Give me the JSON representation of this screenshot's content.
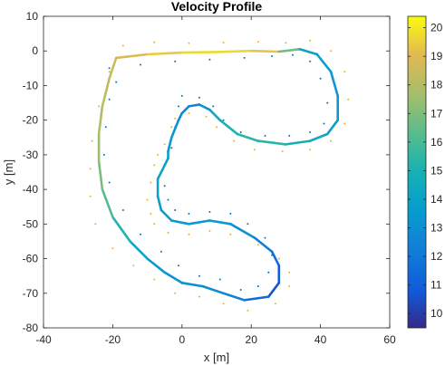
{
  "chart_data": {
    "type": "line",
    "title": "Velocity Profile",
    "xlabel": "x [m]",
    "ylabel": "y [m]",
    "xlim": [
      -40,
      60
    ],
    "ylim": [
      -80,
      10
    ],
    "xticks": [
      -40,
      -20,
      0,
      20,
      40,
      60
    ],
    "yticks": [
      10,
      0,
      -10,
      -20,
      -30,
      -40,
      -50,
      -60,
      -70,
      -80
    ],
    "grid": false,
    "colorbar": {
      "range": [
        9.5,
        20.4
      ],
      "ticks": [
        10,
        11,
        12,
        13,
        14,
        15,
        16,
        17,
        18,
        19,
        20
      ],
      "colormap": "parula"
    },
    "path": {
      "x": [
        -19,
        -10,
        0,
        10,
        20,
        28,
        34,
        39,
        43,
        45,
        45,
        42,
        37,
        30,
        22,
        16,
        11,
        8,
        5,
        2,
        0,
        -1,
        -3,
        -4,
        -4,
        -5,
        -7,
        -7,
        -6,
        -3,
        2,
        8,
        14,
        21,
        26,
        28,
        28,
        25,
        18,
        12,
        6,
        0,
        -5,
        -10,
        -15,
        -20,
        -23,
        -24,
        -24,
        -23,
        -21
      ],
      "y": [
        -2,
        -1,
        -0.5,
        -0.3,
        0,
        -0.2,
        0.5,
        -1,
        -6,
        -13,
        -20,
        -24,
        -26,
        -27,
        -26,
        -24,
        -20,
        -17,
        -15.5,
        -16,
        -18,
        -20,
        -25,
        -29,
        -31,
        -33,
        -37,
        -42,
        -46,
        -49,
        -50,
        -49,
        -50,
        -54,
        -58,
        -62,
        -67,
        -71,
        -72,
        -70,
        -68,
        -67,
        -64,
        -60,
        -55,
        -48,
        -40,
        -32,
        -24,
        -16,
        -8
      ],
      "v": [
        18.6,
        19.2,
        19.6,
        19.8,
        19.6,
        19.0,
        14.2,
        13.8,
        13.5,
        13.3,
        13.5,
        14.0,
        14.5,
        15.2,
        15.5,
        15.3,
        14.8,
        14.0,
        12.6,
        12.5,
        12.7,
        13.0,
        13.3,
        13.6,
        13.8,
        13.9,
        14.0,
        13.9,
        13.8,
        13.6,
        13.5,
        13.6,
        13.4,
        12.6,
        12.0,
        11.2,
        10.5,
        10.8,
        12.2,
        12.8,
        13.0,
        13.2,
        13.4,
        13.8,
        14.5,
        15.8,
        16.5,
        17.3,
        17.8,
        18.1,
        18.3
      ]
    },
    "outer_boundary": {
      "color": "#EDB120",
      "x": [
        -17,
        -8,
        2,
        12,
        22,
        30,
        37,
        43,
        47,
        48,
        47,
        43,
        37,
        29,
        21,
        15,
        10,
        7,
        2,
        -2,
        -3,
        -5,
        -7,
        -8,
        -9,
        -10,
        -9,
        -8,
        -4,
        2,
        8,
        14,
        22,
        28,
        31,
        31,
        27,
        19,
        12,
        5,
        -2,
        -8,
        -14,
        -20,
        -25,
        -26.5,
        -26.5,
        -26,
        -24,
        -21
      ],
      "y": [
        1.5,
        2.5,
        2.2,
        2.4,
        2.6,
        2.3,
        3,
        0,
        -6,
        -14,
        -21,
        -26,
        -28.5,
        -29,
        -28.5,
        -26,
        -22,
        -19,
        -18,
        -19.5,
        -22,
        -27,
        -30,
        -33,
        -38,
        -43,
        -47,
        -50,
        -52.5,
        -53,
        -52,
        -53,
        -56,
        -60,
        -64,
        -68,
        -73,
        -75,
        -73,
        -71,
        -70,
        -66,
        -62,
        -57,
        -50,
        -42,
        -34,
        -26,
        -16,
        -6
      ]
    },
    "inner_boundary": {
      "color": "#0072BD",
      "x": [
        -21,
        -12,
        -2,
        8,
        18,
        26,
        32,
        37,
        40,
        42,
        41,
        37,
        31,
        24,
        17,
        12,
        9,
        5,
        0,
        -1,
        -2,
        -3,
        -5,
        -5,
        -4,
        -2,
        2,
        8,
        14,
        19,
        24,
        26,
        25,
        22,
        17,
        11,
        5,
        -1,
        -6,
        -12,
        -17,
        -21,
        -22.5,
        -22,
        -21,
        -19
      ],
      "y": [
        -5,
        -4,
        -3,
        -2.5,
        -2,
        -1.5,
        -1.2,
        -3,
        -8,
        -15,
        -21,
        -23.5,
        -24.5,
        -24.5,
        -23.5,
        -20,
        -16,
        -13.5,
        -13,
        -16,
        -22,
        -28,
        -33,
        -39,
        -43,
        -46,
        -47,
        -46.5,
        -47,
        -50,
        -54,
        -59,
        -64,
        -68,
        -69,
        -66,
        -65,
        -62,
        -58,
        -53,
        -46,
        -38,
        -30,
        -22,
        -14,
        -9
      ]
    }
  }
}
